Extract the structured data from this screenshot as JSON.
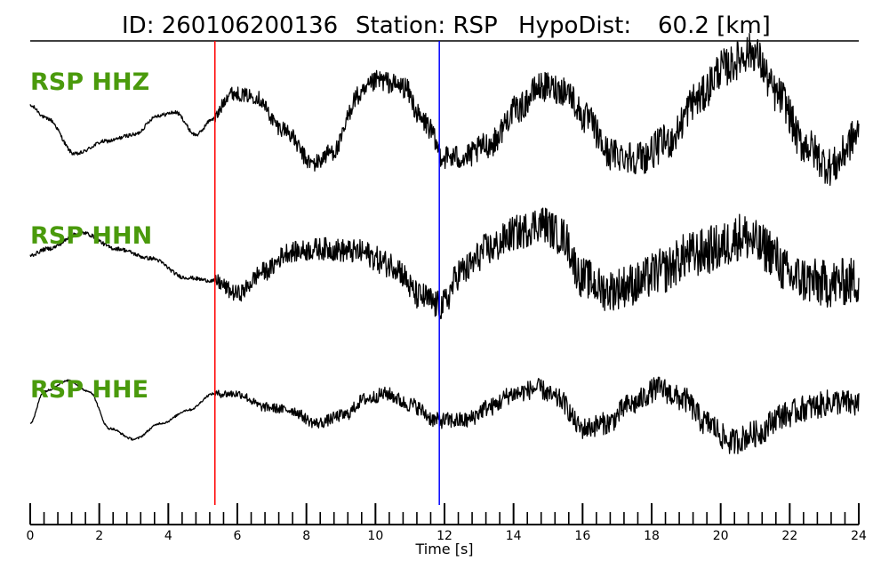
{
  "chart_data": {
    "type": "line",
    "title": {
      "id_label": "ID: 260106200136",
      "station_label": "Station: RSP",
      "hypodist_label": "HypoDist:",
      "hypodist_value": "60.2 [km]"
    },
    "xlabel": "Time [s]",
    "xlim": [
      0,
      24
    ],
    "x_major_ticks": [
      0,
      2,
      4,
      6,
      8,
      10,
      12,
      14,
      16,
      18,
      20,
      22,
      24
    ],
    "x_minor_step": 0.4,
    "grid": false,
    "colors": {
      "label": "#4a9a0c",
      "trace": "#000000",
      "p_pick": "#ff0000",
      "s_pick": "#0000ff"
    },
    "picks": [
      {
        "phase": "P",
        "time": 5.35,
        "color": "#ff0000"
      },
      {
        "phase": "S",
        "time": 11.85,
        "color": "#0000ff"
      }
    ],
    "series": [
      {
        "name": "RSP HHZ",
        "control_points": [
          [
            0.0,
            0.15
          ],
          [
            0.5,
            -0.05
          ],
          [
            1.3,
            -0.6
          ],
          [
            2.2,
            -0.4
          ],
          [
            3.0,
            -0.3
          ],
          [
            3.7,
            0.0
          ],
          [
            4.2,
            0.05
          ],
          [
            4.8,
            -0.3
          ],
          [
            5.3,
            -0.05
          ],
          [
            5.8,
            0.35
          ],
          [
            6.5,
            0.3
          ],
          [
            7.3,
            -0.2
          ],
          [
            8.2,
            -0.75
          ],
          [
            8.8,
            -0.55
          ],
          [
            9.5,
            0.3
          ],
          [
            10.1,
            0.55
          ],
          [
            10.8,
            0.45
          ],
          [
            11.4,
            -0.1
          ],
          [
            12.0,
            -0.65
          ],
          [
            12.6,
            -0.65
          ],
          [
            13.3,
            -0.45
          ],
          [
            14.1,
            0.1
          ],
          [
            14.8,
            0.45
          ],
          [
            15.5,
            0.4
          ],
          [
            16.1,
            -0.05
          ],
          [
            16.8,
            -0.6
          ],
          [
            17.7,
            -0.65
          ],
          [
            18.5,
            -0.4
          ],
          [
            19.3,
            0.25
          ],
          [
            20.1,
            0.75
          ],
          [
            20.9,
            1.0
          ],
          [
            21.7,
            0.3
          ],
          [
            22.4,
            -0.45
          ],
          [
            23.2,
            -0.8
          ],
          [
            24.0,
            -0.3
          ]
        ],
        "noise_onset": 5.35,
        "noise_amplitude_pre": 0.03,
        "noise_amplitude_post": [
          0.1,
          0.3
        ]
      },
      {
        "name": "RSP HHN",
        "control_points": [
          [
            0.0,
            0.25
          ],
          [
            0.5,
            0.35
          ],
          [
            1.5,
            0.6
          ],
          [
            2.5,
            0.35
          ],
          [
            3.5,
            0.2
          ],
          [
            4.5,
            -0.1
          ],
          [
            5.3,
            -0.15
          ],
          [
            6.0,
            -0.35
          ],
          [
            6.8,
            0.0
          ],
          [
            7.5,
            0.3
          ],
          [
            8.5,
            0.35
          ],
          [
            9.5,
            0.3
          ],
          [
            10.5,
            0.1
          ],
          [
            11.3,
            -0.4
          ],
          [
            11.9,
            -0.55
          ],
          [
            12.5,
            0.0
          ],
          [
            13.3,
            0.35
          ],
          [
            14.1,
            0.6
          ],
          [
            14.8,
            0.75
          ],
          [
            15.4,
            0.55
          ],
          [
            16.0,
            -0.1
          ],
          [
            16.7,
            -0.3
          ],
          [
            17.5,
            -0.2
          ],
          [
            18.3,
            0.0
          ],
          [
            19.1,
            0.25
          ],
          [
            19.9,
            0.35
          ],
          [
            20.6,
            0.55
          ],
          [
            21.3,
            0.35
          ],
          [
            22.1,
            -0.1
          ],
          [
            23.0,
            -0.2
          ],
          [
            24.0,
            -0.15
          ]
        ],
        "noise_onset": 5.35,
        "noise_amplitude_pre": 0.03,
        "noise_amplitude_post": [
          0.12,
          0.38
        ]
      },
      {
        "name": "RSP HHE",
        "control_points": [
          [
            0.0,
            -0.35
          ],
          [
            0.4,
            0.25
          ],
          [
            1.1,
            0.45
          ],
          [
            1.7,
            0.25
          ],
          [
            2.3,
            -0.45
          ],
          [
            3.0,
            -0.65
          ],
          [
            3.8,
            -0.35
          ],
          [
            4.6,
            -0.1
          ],
          [
            5.3,
            0.2
          ],
          [
            6.0,
            0.2
          ],
          [
            6.8,
            -0.05
          ],
          [
            7.5,
            -0.1
          ],
          [
            8.3,
            -0.35
          ],
          [
            9.1,
            -0.2
          ],
          [
            9.7,
            0.1
          ],
          [
            10.3,
            0.2
          ],
          [
            11.0,
            0.0
          ],
          [
            11.8,
            -0.3
          ],
          [
            12.6,
            -0.3
          ],
          [
            13.3,
            -0.05
          ],
          [
            14.0,
            0.2
          ],
          [
            14.7,
            0.3
          ],
          [
            15.3,
            0.1
          ],
          [
            16.0,
            -0.45
          ],
          [
            16.7,
            -0.35
          ],
          [
            17.4,
            0.0
          ],
          [
            18.2,
            0.3
          ],
          [
            18.9,
            0.1
          ],
          [
            19.6,
            -0.35
          ],
          [
            20.3,
            -0.7
          ],
          [
            21.0,
            -0.55
          ],
          [
            21.8,
            -0.2
          ],
          [
            22.6,
            -0.05
          ],
          [
            23.3,
            0.05
          ],
          [
            24.0,
            0.0
          ]
        ],
        "noise_onset": 5.35,
        "noise_amplitude_pre": 0.02,
        "noise_amplitude_post": [
          0.07,
          0.25
        ]
      }
    ]
  }
}
